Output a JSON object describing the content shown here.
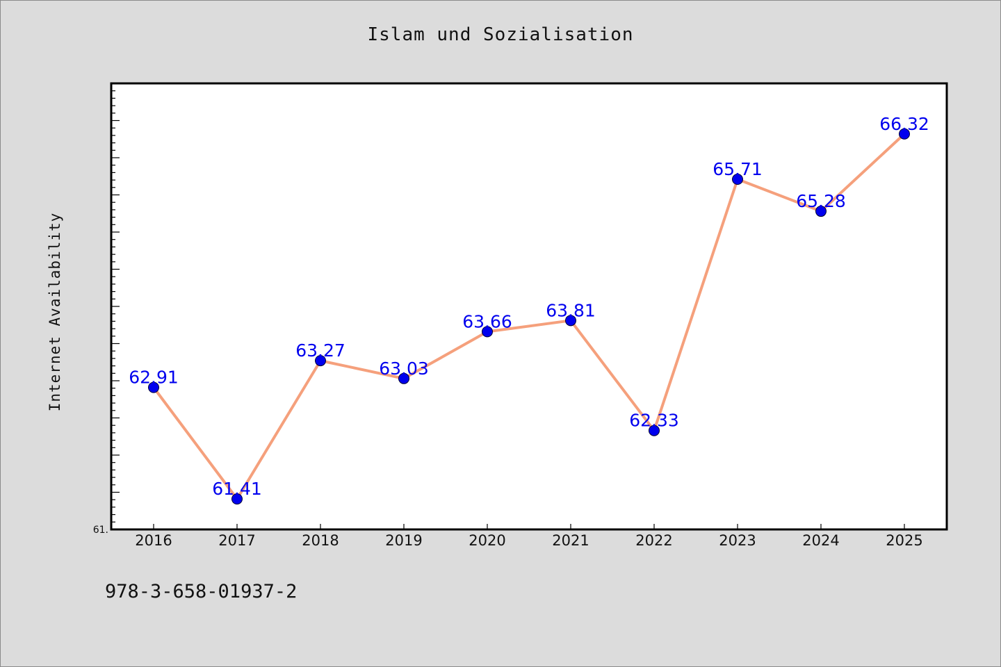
{
  "figure": {
    "title": "Islam und Sozialisation",
    "footer_text": "978-3-658-01937-2",
    "background_color": "#dcdcdc"
  },
  "chart_data": {
    "type": "line",
    "title": "Islam und Sozialisation",
    "xlabel": "",
    "ylabel": "Internet Availability",
    "categories": [
      "2016",
      "2017",
      "2018",
      "2019",
      "2020",
      "2021",
      "2022",
      "2023",
      "2024",
      "2025"
    ],
    "series": [
      {
        "values": [
          62.91,
          61.41,
          63.27,
          63.03,
          63.66,
          63.81,
          62.33,
          65.71,
          65.28,
          66.32
        ],
        "data_labels": [
          "62.91",
          "61.41",
          "63.27",
          "63.03",
          "63.66",
          "63.81",
          "62.33",
          "65.71",
          "65.28",
          "66.32"
        ],
        "line_color": "#f5a07c",
        "marker_color": "#0000ee",
        "label_color": "#0000ee"
      }
    ],
    "ylim": [
      61.0,
      67.0
    ],
    "y_visible_tick_labels": [
      {
        "value": 61.0,
        "label": "61."
      }
    ],
    "y_major_tick_step": 0.5,
    "y_minor_tick_step": 0.1,
    "grid": false,
    "legend": "none"
  }
}
